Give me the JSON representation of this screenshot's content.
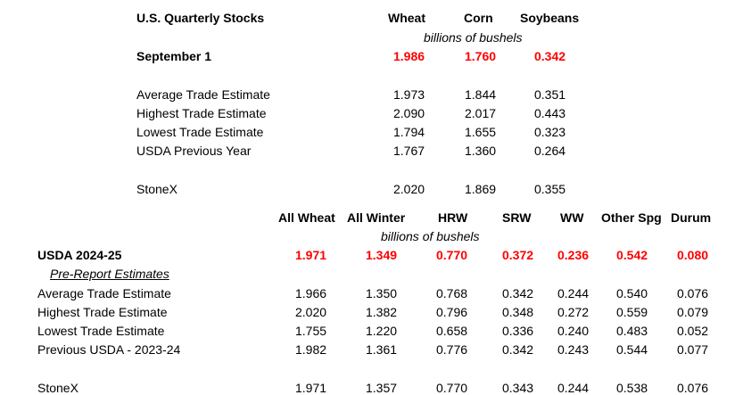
{
  "quarterly": {
    "title": "U.S. Quarterly Stocks",
    "columns": [
      "Wheat",
      "Corn",
      "Soybeans"
    ],
    "units": "billions of bushels",
    "headline": {
      "label": "September 1",
      "values": [
        "1.986",
        "1.760",
        "0.342"
      ]
    },
    "rows": [
      {
        "label": "Average Trade Estimate",
        "values": [
          "1.973",
          "1.844",
          "0.351"
        ]
      },
      {
        "label": "Highest Trade Estimate",
        "values": [
          "2.090",
          "2.017",
          "0.443"
        ]
      },
      {
        "label": "Lowest Trade Estimate",
        "values": [
          "1.794",
          "1.655",
          "0.323"
        ]
      },
      {
        "label": "USDA Previous Year",
        "values": [
          "1.767",
          "1.360",
          "0.264"
        ]
      }
    ],
    "stonex": {
      "label": "StoneX",
      "values": [
        "2.020",
        "1.869",
        "0.355"
      ]
    }
  },
  "classes": {
    "columns": [
      "All Wheat",
      "All Winter",
      "HRW",
      "SRW",
      "WW",
      "Other Spg",
      "Durum"
    ],
    "units": "billions of bushels",
    "headline": {
      "label": "USDA 2024-25",
      "values": [
        "1.971",
        "1.349",
        "0.770",
        "0.372",
        "0.236",
        "0.542",
        "0.080"
      ]
    },
    "subheading": "Pre-Report Estimates",
    "rows": [
      {
        "label": "Average Trade Estimate",
        "values": [
          "1.966",
          "1.350",
          "0.768",
          "0.342",
          "0.244",
          "0.540",
          "0.076"
        ]
      },
      {
        "label": "Highest Trade Estimate",
        "values": [
          "2.020",
          "1.382",
          "0.796",
          "0.348",
          "0.272",
          "0.559",
          "0.079"
        ]
      },
      {
        "label": "Lowest Trade Estimate",
        "values": [
          "1.755",
          "1.220",
          "0.658",
          "0.336",
          "0.240",
          "0.483",
          "0.052"
        ]
      },
      {
        "label": "Previous USDA - 2023-24",
        "values": [
          "1.982",
          "1.361",
          "0.776",
          "0.342",
          "0.243",
          "0.544",
          "0.077"
        ]
      }
    ],
    "stonex": {
      "label": "StoneX",
      "values": [
        "1.971",
        "1.357",
        "0.770",
        "0.343",
        "0.244",
        "0.538",
        "0.076"
      ]
    }
  }
}
